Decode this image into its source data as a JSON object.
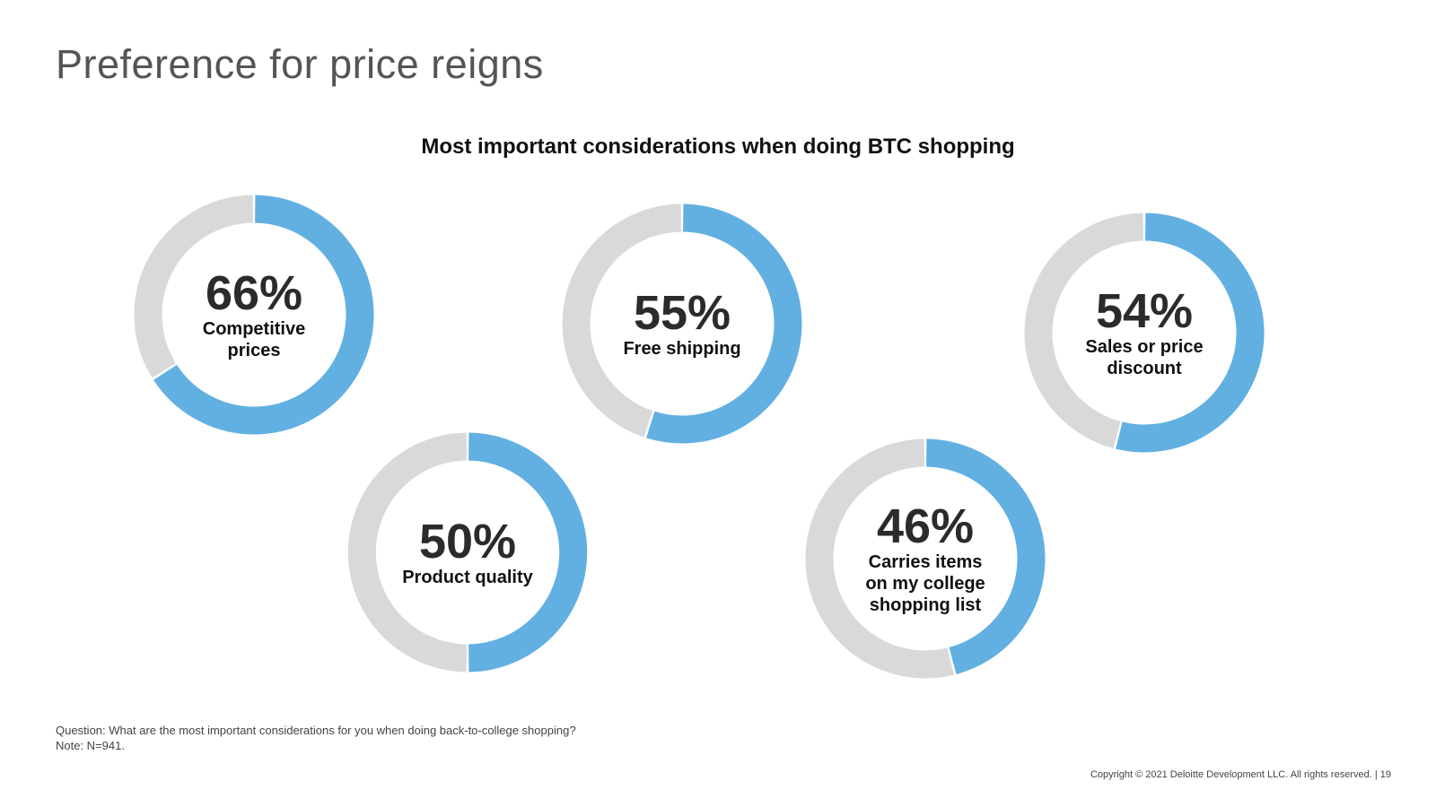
{
  "page": {
    "title": "Preference for price reigns"
  },
  "colors": {
    "fill": "#62b0e2",
    "track": "#d9d9d9"
  },
  "chart_data": {
    "type": "pie",
    "title": "Most important considerations when doing BTC shopping",
    "unit": "%",
    "items": [
      {
        "label": "Competitive prices",
        "value": 66,
        "value_label": "66%"
      },
      {
        "label": "Free shipping",
        "value": 55,
        "value_label": "55%"
      },
      {
        "label": "Sales or price discount",
        "value": 54,
        "value_label": "54%"
      },
      {
        "label": "Product quality",
        "value": 50,
        "value_label": "50%"
      },
      {
        "label": "Carries items on my college shopping list",
        "value": 46,
        "value_label": "46%"
      }
    ]
  },
  "footer": {
    "question": "Question: What are the most important considerations for you when doing back-to-college shopping?",
    "note": "Note: N=941.",
    "copyright": "Copyright © 2021 Deloitte Development LLC. All rights reserved.  |  19"
  }
}
